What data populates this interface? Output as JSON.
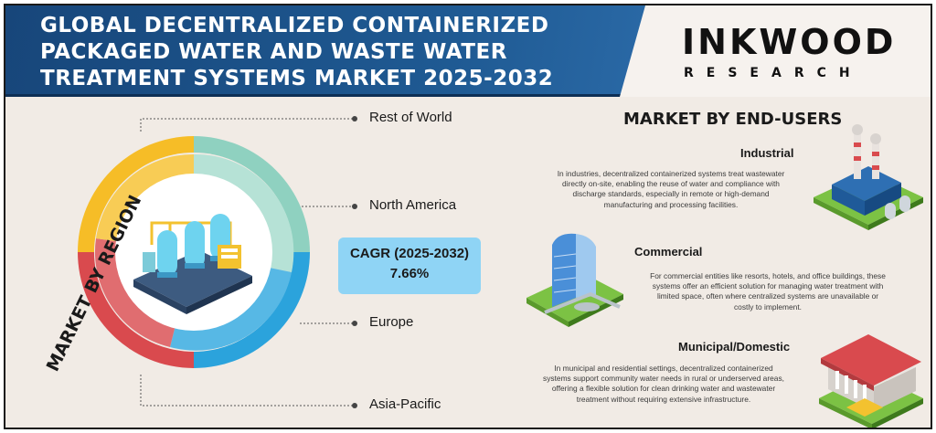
{
  "header": {
    "title_lines": [
      "GLOBAL DECENTRALIZED CONTAINERIZED",
      "PACKAGED WATER AND WASTE WATER",
      "TREATMENT SYSTEMS MARKET 2025-2032"
    ],
    "brand_name": "INKWOOD",
    "brand_sub": "RESEARCH"
  },
  "region": {
    "heading": "MARKET BY REGION",
    "labels": [
      "Rest of World",
      "North America",
      "Europe",
      "Asia-Pacific"
    ],
    "colors": {
      "rest_of_world": "#f6bd27",
      "north_america": "#8fd1c0",
      "europe": "#2ba3dc",
      "asia_pacific": "#d94a4e"
    }
  },
  "cagr": {
    "label": "CAGR (2025-2032)",
    "value": "7.66%"
  },
  "end_users": {
    "heading": "MARKET BY END-USERS",
    "segments": [
      {
        "name": "Industrial",
        "lines": [
          "In industries, decentralized containerized systems treat wastewater",
          "directly on-site, enabling the reuse of water and compliance with",
          "discharge standards, especially in remote or high-demand",
          "manufacturing and processing facilities."
        ]
      },
      {
        "name": "Commercial",
        "lines": [
          "For commercial entities like resorts, hotels, and office buildings, these",
          "systems offer an efficient solution for managing water treatment with",
          "limited space, often where centralized systems are unavailable or",
          "costly to implement."
        ]
      },
      {
        "name": "Municipal/Domestic",
        "lines": [
          "In municipal and residential settings, decentralized containerized",
          "systems support community water needs in rural or underserved areas,",
          "offering a flexible solution for clean drinking water and wastewater",
          "treatment without requiring extensive infrastructure."
        ]
      }
    ]
  }
}
